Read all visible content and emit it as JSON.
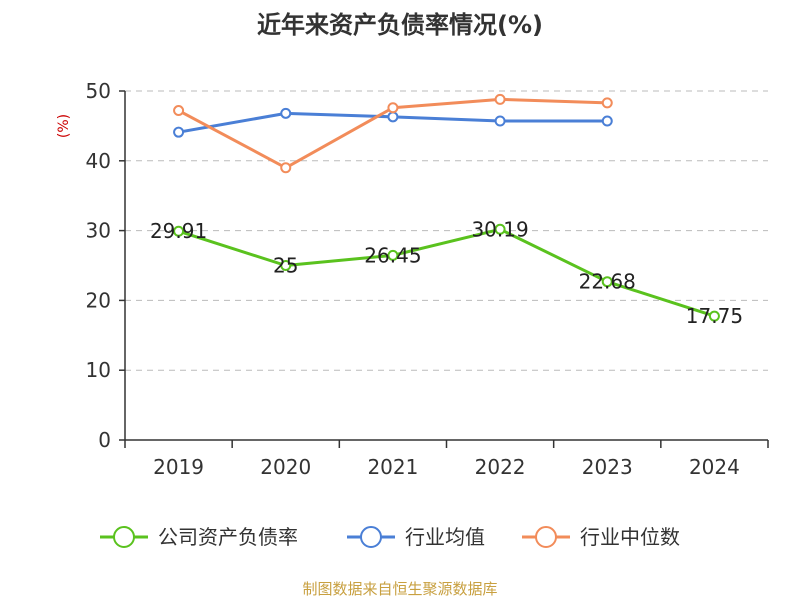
{
  "chart_data": {
    "type": "line",
    "title": "近年来资产负债率情况(%)",
    "ylabel": "(%)",
    "xlabel": "",
    "categories": [
      "2019",
      "2020",
      "2021",
      "2022",
      "2023",
      "2024"
    ],
    "ylim": [
      0,
      50
    ],
    "yticks": [
      0,
      10,
      20,
      30,
      40,
      50
    ],
    "grid": true,
    "legend_position": "bottom",
    "series": [
      {
        "name": "公司资产负债率",
        "color": "#5ac21e",
        "values": [
          29.91,
          25,
          26.45,
          30.19,
          22.68,
          17.75
        ],
        "labels": [
          "29.91",
          "25",
          "26.45",
          "30.19",
          "22.68",
          "17.75"
        ]
      },
      {
        "name": "行业均值",
        "color": "#4a7fd6",
        "values": [
          44.1,
          46.8,
          46.3,
          45.7,
          45.7,
          null
        ]
      },
      {
        "name": "行业中位数",
        "color": "#f28c5a",
        "values": [
          47.2,
          39.0,
          47.6,
          48.8,
          48.3,
          null
        ]
      }
    ]
  },
  "source": "制图数据来自恒生聚源数据库"
}
